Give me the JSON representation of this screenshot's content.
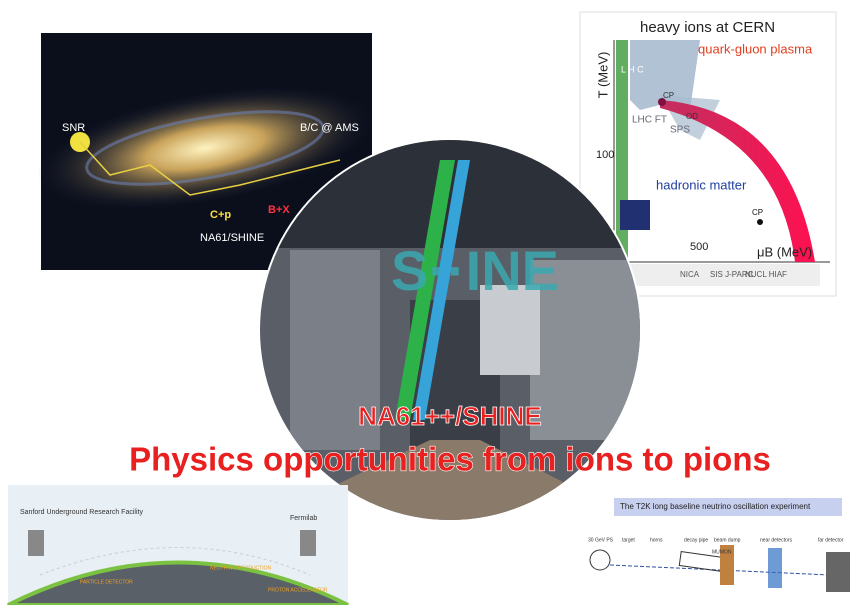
{
  "galaxy_panel": {
    "snr": "SNR",
    "bc": "B/C @ AMS",
    "reaction_left": "C+p",
    "reaction_right": "B+X",
    "experiment": "NA61/SHINE"
  },
  "phase_diagram": {
    "title": "heavy ions at CERN",
    "y_axis": "T (MeV)",
    "x_axis": "μB (MeV)",
    "qgp": "quark-gluon plasma",
    "hadronic": "hadronic matter",
    "cp_top": "CP",
    "cp_bottom": "CP",
    "od": "OD",
    "lhc_vertical": "L H C",
    "lhc_ft": "LHC FT",
    "sps": "SPS",
    "ytick": "100",
    "xtick": "500",
    "facilities": [
      "NICA",
      "SIS J-PARC",
      "NUCL HIAF"
    ]
  },
  "center": {
    "logo": "S··INE",
    "subtitle": "NA61++/SHINE",
    "title": "Physics opportunities from ions to pions"
  },
  "neutrino_panel": {
    "left_site": "Sanford Underground Research Facility",
    "right_site": "Fermilab",
    "labels": [
      "PARTICLE DETECTOR",
      "NEUTRINO PRODUCTION",
      "PROTON ACCELERATOR"
    ]
  },
  "t2k_panel": {
    "title": "The T2K long baseline neutrino oscillation experiment",
    "labels": [
      "30 GeV PS",
      "target",
      "horns",
      "decay pipe",
      "beam dump",
      "MUMON",
      "near detectors",
      "far detector"
    ]
  }
}
